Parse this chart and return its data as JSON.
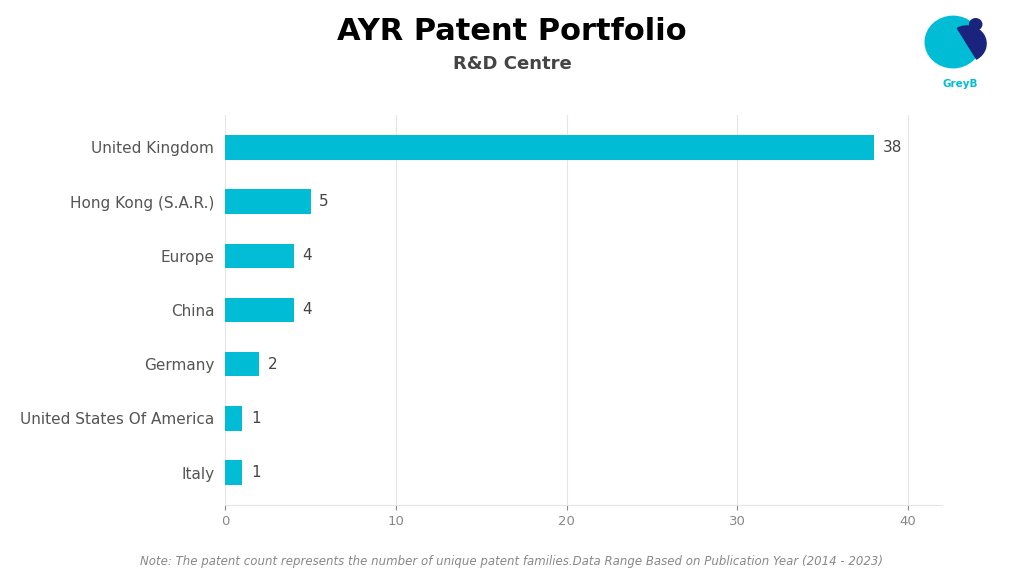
{
  "title": "AYR Patent Portfolio",
  "subtitle": "R&D Centre",
  "categories": [
    "Italy",
    "United States Of America",
    "Germany",
    "China",
    "Europe",
    "Hong Kong (S.A.R.)",
    "United Kingdom"
  ],
  "values": [
    1,
    1,
    2,
    4,
    4,
    5,
    38
  ],
  "bar_color": "#00BCD4",
  "bar_height": 0.45,
  "xlim": [
    0,
    42
  ],
  "xticks": [
    0,
    10,
    20,
    30,
    40
  ],
  "title_fontsize": 22,
  "subtitle_fontsize": 13,
  "label_fontsize": 11,
  "value_fontsize": 11,
  "note_text": "Note: The patent count represents the number of unique patent families.Data Range Based on Publication Year (2014 - 2023)",
  "note_fontsize": 8.5,
  "background_color": "#ffffff",
  "title_color": "#000000",
  "subtitle_color": "#444444",
  "label_color": "#555555",
  "value_color": "#444444",
  "tick_color": "#888888",
  "grid_color": "#e5e5e5"
}
